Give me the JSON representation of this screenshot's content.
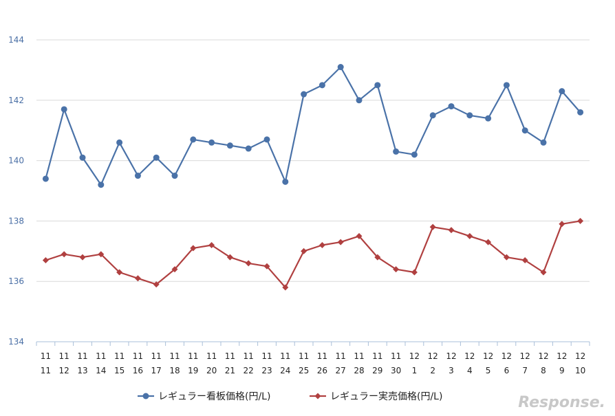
{
  "chart_data": {
    "type": "line",
    "x_months": [
      "11",
      "11",
      "11",
      "11",
      "11",
      "11",
      "11",
      "11",
      "11",
      "11",
      "11",
      "11",
      "11",
      "11",
      "11",
      "11",
      "11",
      "11",
      "11",
      "11",
      "12",
      "12",
      "12",
      "12",
      "12",
      "12",
      "12",
      "12",
      "12",
      "12"
    ],
    "x_days": [
      "11",
      "12",
      "13",
      "14",
      "15",
      "16",
      "17",
      "18",
      "19",
      "20",
      "21",
      "22",
      "23",
      "24",
      "25",
      "26",
      "27",
      "28",
      "29",
      "30",
      "1",
      "2",
      "3",
      "4",
      "5",
      "6",
      "7",
      "8",
      "9",
      "10"
    ],
    "ylim": [
      134,
      144
    ],
    "yticks": [
      134,
      136,
      138,
      140,
      142,
      144
    ],
    "grid": true,
    "legend_position": "bottom",
    "series": [
      {
        "name": "レギュラー看板価格(円/L)",
        "color": "#4a72a8",
        "marker": "circle",
        "values": [
          139.4,
          141.7,
          140.1,
          139.2,
          140.6,
          139.5,
          140.1,
          139.5,
          140.7,
          140.6,
          140.5,
          140.4,
          140.7,
          139.3,
          142.2,
          142.5,
          143.1,
          142.0,
          142.5,
          140.3,
          140.2,
          141.5,
          141.8,
          141.5,
          141.4,
          142.5,
          141.0,
          140.6,
          142.3,
          141.6
        ]
      },
      {
        "name": "レギュラー実売価格(円/L)",
        "color": "#b04040",
        "marker": "diamond",
        "values": [
          136.7,
          136.9,
          136.8,
          136.9,
          136.3,
          136.1,
          135.9,
          136.4,
          137.1,
          137.2,
          136.8,
          136.6,
          136.5,
          135.8,
          137.0,
          137.2,
          137.3,
          137.5,
          136.8,
          136.4,
          136.3,
          137.8,
          137.7,
          137.5,
          137.3,
          136.8,
          136.7,
          136.3,
          137.9,
          138.0
        ]
      }
    ]
  },
  "watermark": "Response."
}
